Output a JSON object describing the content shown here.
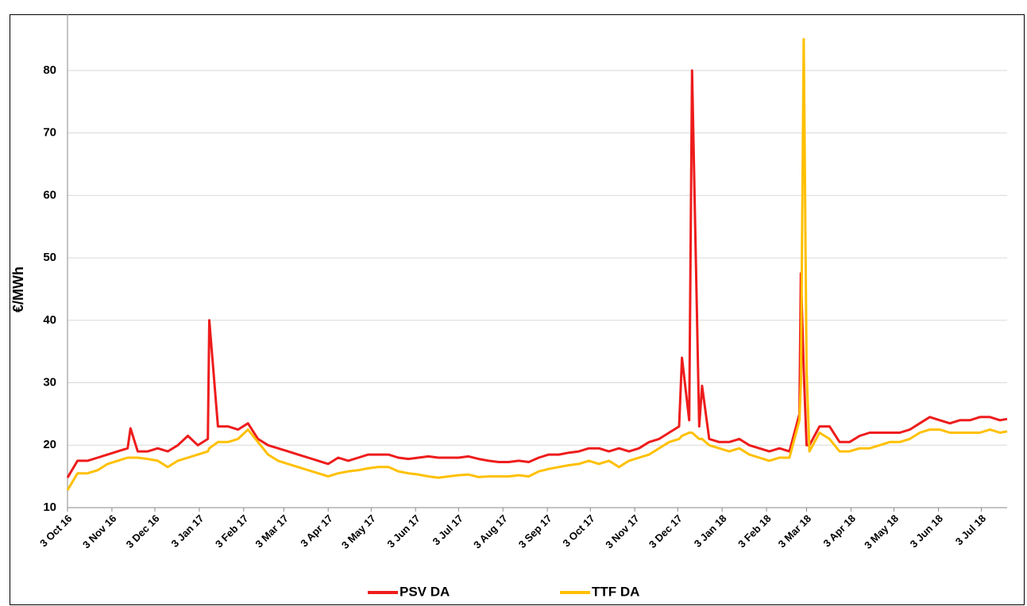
{
  "chart_data": {
    "type": "line",
    "ylabel": "€/MWh",
    "x": [
      "2016-10-03",
      "2016-10-10",
      "2016-10-17",
      "2016-10-24",
      "2016-10-31",
      "2016-11-07",
      "2016-11-14",
      "2016-11-16",
      "2016-11-21",
      "2016-11-28",
      "2016-12-05",
      "2016-12-12",
      "2016-12-19",
      "2016-12-26",
      "2017-01-02",
      "2017-01-09",
      "2017-01-10",
      "2017-01-16",
      "2017-01-23",
      "2017-01-30",
      "2017-02-06",
      "2017-02-13",
      "2017-02-20",
      "2017-02-27",
      "2017-03-06",
      "2017-03-13",
      "2017-03-20",
      "2017-03-27",
      "2017-04-03",
      "2017-04-10",
      "2017-04-17",
      "2017-04-24",
      "2017-05-01",
      "2017-05-08",
      "2017-05-15",
      "2017-05-22",
      "2017-05-29",
      "2017-06-05",
      "2017-06-12",
      "2017-06-19",
      "2017-06-26",
      "2017-07-03",
      "2017-07-10",
      "2017-07-17",
      "2017-07-24",
      "2017-07-31",
      "2017-08-07",
      "2017-08-14",
      "2017-08-21",
      "2017-08-28",
      "2017-09-04",
      "2017-09-11",
      "2017-09-18",
      "2017-09-25",
      "2017-10-02",
      "2017-10-09",
      "2017-10-16",
      "2017-10-23",
      "2017-10-30",
      "2017-11-06",
      "2017-11-13",
      "2017-11-20",
      "2017-11-27",
      "2017-12-04",
      "2017-12-06",
      "2017-12-11",
      "2017-12-13",
      "2017-12-18",
      "2017-12-20",
      "2017-12-25",
      "2018-01-01",
      "2018-01-08",
      "2018-01-15",
      "2018-01-22",
      "2018-01-29",
      "2018-02-05",
      "2018-02-12",
      "2018-02-19",
      "2018-02-26",
      "2018-02-27",
      "2018-03-01",
      "2018-03-03",
      "2018-03-05",
      "2018-03-12",
      "2018-03-19",
      "2018-03-26",
      "2018-04-02",
      "2018-04-09",
      "2018-04-16",
      "2018-04-23",
      "2018-04-30",
      "2018-05-07",
      "2018-05-14",
      "2018-05-21",
      "2018-05-28",
      "2018-06-04",
      "2018-06-11",
      "2018-06-18",
      "2018-06-25",
      "2018-07-02",
      "2018-07-09",
      "2018-07-16",
      "2018-07-21"
    ],
    "series": [
      {
        "name": "PSV DA",
        "color": "#ee1c1c",
        "values": [
          14.8,
          17.5,
          17.5,
          18,
          18.5,
          19,
          19.5,
          22.7,
          19,
          19,
          19.5,
          19,
          20,
          21.5,
          20,
          21,
          40,
          23,
          23,
          22.5,
          23.5,
          21,
          20,
          19.5,
          19,
          18.5,
          18,
          17.5,
          17,
          18,
          17.5,
          18,
          18.5,
          18.5,
          18.5,
          18,
          17.8,
          18,
          18.2,
          18,
          18,
          18,
          18.2,
          17.8,
          17.5,
          17.3,
          17.3,
          17.5,
          17.3,
          18,
          18.5,
          18.5,
          18.8,
          19,
          19.5,
          19.5,
          19,
          19.5,
          19,
          19.5,
          20.5,
          21,
          22,
          23,
          34,
          24,
          80,
          23,
          29.5,
          21,
          20.5,
          20.5,
          21,
          20,
          19.5,
          19,
          19.5,
          19,
          25,
          47.5,
          32,
          20,
          20,
          23,
          23,
          20.5,
          20.5,
          21.5,
          22,
          22,
          22,
          22,
          22.5,
          23.5,
          24.5,
          24,
          23.5,
          24,
          24,
          24.5,
          24.5,
          24,
          24.2
        ]
      },
      {
        "name": "TTF DA",
        "color": "#ffc000",
        "values": [
          12.8,
          15.5,
          15.5,
          16,
          17,
          17.5,
          18,
          18,
          18,
          17.8,
          17.5,
          16.5,
          17.5,
          18,
          18.5,
          19,
          19.5,
          20.5,
          20.5,
          21,
          22.5,
          20.5,
          18.5,
          17.5,
          17,
          16.5,
          16,
          15.5,
          15,
          15.5,
          15.8,
          16,
          16.3,
          16.5,
          16.5,
          15.8,
          15.5,
          15.3,
          15,
          14.8,
          15,
          15.2,
          15.3,
          14.9,
          15,
          15,
          15,
          15.2,
          15,
          15.8,
          16.2,
          16.5,
          16.8,
          17,
          17.5,
          17,
          17.5,
          16.5,
          17.5,
          18,
          18.5,
          19.5,
          20.5,
          21,
          21.5,
          22,
          22,
          21,
          21,
          20,
          19.5,
          19,
          19.5,
          18.5,
          18,
          17.5,
          18,
          18,
          24,
          30,
          85,
          32,
          19,
          22,
          21,
          19,
          19,
          19.5,
          19.5,
          20,
          20.5,
          20.5,
          21,
          22,
          22.5,
          22.5,
          22,
          22,
          22,
          22,
          22.5,
          22,
          22.2
        ]
      }
    ],
    "xlim": [
      "2016-10-03",
      "2018-07-21"
    ],
    "xticks": [
      {
        "value": "2016-10-03",
        "label": "3 Oct 16"
      },
      {
        "value": "2016-11-03",
        "label": "3 Nov 16"
      },
      {
        "value": "2016-12-03",
        "label": "3 Dec 16"
      },
      {
        "value": "2017-01-03",
        "label": "3 Jan 17"
      },
      {
        "value": "2017-02-03",
        "label": "3 Feb 17"
      },
      {
        "value": "2017-03-03",
        "label": "3 Mar 17"
      },
      {
        "value": "2017-04-03",
        "label": "3 Apr 17"
      },
      {
        "value": "2017-05-03",
        "label": "3 May 17"
      },
      {
        "value": "2017-06-03",
        "label": "3 Jun 17"
      },
      {
        "value": "2017-07-03",
        "label": "3 Jul 17"
      },
      {
        "value": "2017-08-03",
        "label": "3 Aug 17"
      },
      {
        "value": "2017-09-03",
        "label": "3 Sep 17"
      },
      {
        "value": "2017-10-03",
        "label": "3 Oct 17"
      },
      {
        "value": "2017-11-03",
        "label": "3 Nov 17"
      },
      {
        "value": "2017-12-03",
        "label": "3 Dec 17"
      },
      {
        "value": "2018-01-03",
        "label": "3 Jan 18"
      },
      {
        "value": "2018-02-03",
        "label": "3 Feb 18"
      },
      {
        "value": "2018-03-03",
        "label": "3 Mar 18"
      },
      {
        "value": "2018-04-03",
        "label": "3 Apr 18"
      },
      {
        "value": "2018-05-03",
        "label": "3 May 18"
      },
      {
        "value": "2018-06-03",
        "label": "3 Jun 18"
      },
      {
        "value": "2018-07-03",
        "label": "3 Jul 18"
      }
    ],
    "ylim": [
      10,
      89
    ],
    "yticks": [
      10,
      20,
      30,
      40,
      50,
      60,
      70,
      80
    ],
    "grid": true,
    "legend": "bottom"
  }
}
